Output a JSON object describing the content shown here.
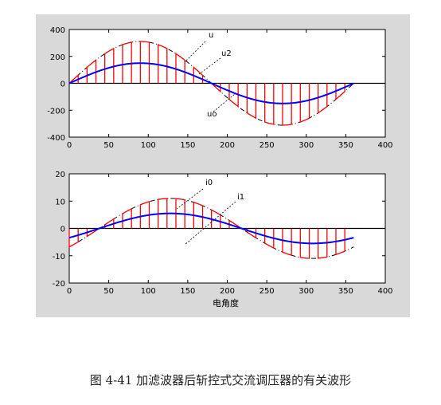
{
  "caption": "图 4-41  加滤波器后斩控式交流调压器的有关波形",
  "colors": {
    "figure_bg": "#d9d9d9",
    "axes_bg": "#ffffff",
    "red": "#ff0000",
    "blue": "#0000ff",
    "black": "#000000"
  },
  "chart_data": [
    {
      "type": "line",
      "xlim": [
        0,
        400
      ],
      "ylim": [
        -400,
        400
      ],
      "xticks": [
        "0",
        "50",
        "100",
        "150",
        "200",
        "250",
        "300",
        "350",
        "400"
      ],
      "yticks": [
        "400",
        "200",
        "0",
        "-200",
        "-400"
      ],
      "xlabel": "",
      "annotations": [
        "u",
        "u2",
        "uo"
      ],
      "series": [
        {
          "color": "#000000",
          "style": "dash-dot",
          "amplitude": 311,
          "phase_deg": 0,
          "x": [
            0,
            360
          ]
        },
        {
          "color": "#ff0000",
          "style": "chopped",
          "amplitude": 311,
          "phase_deg": 0,
          "x": [
            0,
            360
          ],
          "pulses": 16
        },
        {
          "color": "#0000ff",
          "style": "solid",
          "amplitude": 150,
          "phase_deg": 0,
          "x": [
            0,
            360
          ]
        }
      ]
    },
    {
      "type": "line",
      "xlim": [
        0,
        400
      ],
      "ylim": [
        -20,
        20
      ],
      "xticks": [
        "0",
        "50",
        "100",
        "150",
        "200",
        "250",
        "300",
        "350",
        "400"
      ],
      "yticks": [
        "20",
        "10",
        "0",
        "-10",
        "-20"
      ],
      "xlabel": "电角度",
      "annotations": [
        "i0",
        "i1"
      ],
      "series": [
        {
          "color": "#000000",
          "style": "dash-dot",
          "amplitude": 11,
          "phase_deg": -38,
          "x": [
            0,
            360
          ]
        },
        {
          "color": "#ff0000",
          "style": "chopped",
          "amplitude": 11,
          "phase_deg": -38,
          "x": [
            0,
            360
          ],
          "pulses": 16
        },
        {
          "color": "#0000ff",
          "style": "solid",
          "amplitude": 5.5,
          "phase_deg": -38,
          "x": [
            0,
            360
          ]
        }
      ]
    }
  ]
}
